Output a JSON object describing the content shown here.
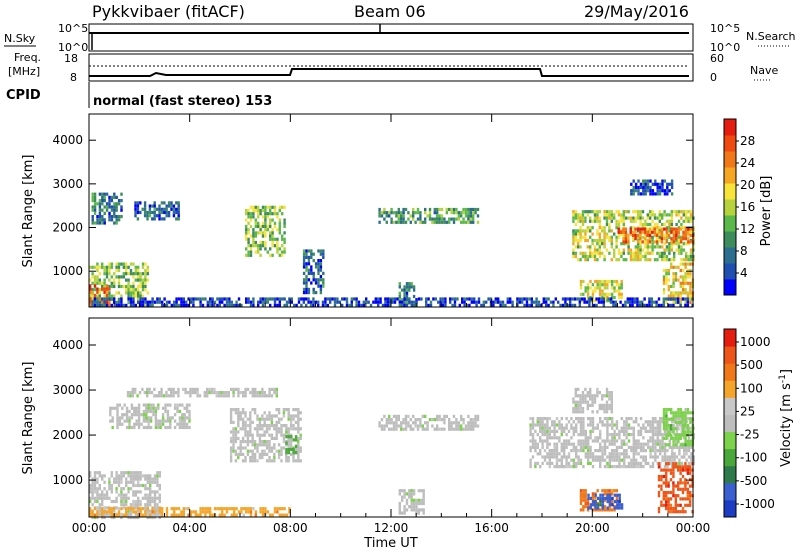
{
  "header": {
    "station": "Pykkvibaer (fitACF)",
    "beam": "Beam 06",
    "date": "29/May/2016"
  },
  "top_panels": {
    "nsky_label": "N.Sky",
    "nsearch_label": "N.Search",
    "freq_label_line1": "Freq.",
    "freq_label_line2": "[MHz]",
    "nave_label": "Nave",
    "cpid_label": "CPID",
    "cpid_text": "normal (fast stereo) 153",
    "noise_left_ticks": [
      "10^5",
      "10^0"
    ],
    "noise_right_ticks": [
      "10^5",
      "10^0"
    ],
    "freq_left_ticks": [
      "18",
      "8"
    ],
    "nave_right_ticks": [
      "60",
      "0"
    ]
  },
  "chart_data": [
    {
      "type": "heatmap",
      "name": "Power",
      "xlabel": "Time UT",
      "ylabel": "Slant Range [km]",
      "x_ticks": [
        "00:00",
        "04:00",
        "08:00",
        "12:00",
        "16:00",
        "20:00",
        "00:00"
      ],
      "x_range_hours": [
        0,
        24
      ],
      "y_ticks": [
        1000,
        2000,
        3000,
        4000
      ],
      "ylim": [
        180,
        4600
      ],
      "colorbar": {
        "label": "Power [dB]",
        "ticks": [
          "4",
          "8",
          "12",
          "16",
          "20",
          "24",
          "28"
        ],
        "colors": [
          "#0000ff",
          "#1f4fb0",
          "#2c6e8f",
          "#3c8c5c",
          "#5bb84a",
          "#b6d23c",
          "#f7e33a",
          "#f5a623",
          "#f07818",
          "#ee4a12",
          "#e51c10"
        ]
      },
      "regions": [
        {
          "t0": 0.0,
          "t1": 2.3,
          "r0": 200,
          "r1": 1200,
          "v": 0.45
        },
        {
          "t0": 0.0,
          "t1": 0.8,
          "r0": 200,
          "r1": 700,
          "v": 0.85
        },
        {
          "t0": 0.1,
          "t1": 1.3,
          "r0": 2100,
          "r1": 2800,
          "v": 0.25
        },
        {
          "t0": 1.8,
          "t1": 3.6,
          "r0": 2200,
          "r1": 2600,
          "v": 0.2
        },
        {
          "t0": 6.2,
          "t1": 7.8,
          "r0": 1400,
          "r1": 2500,
          "v": 0.45
        },
        {
          "t0": 8.5,
          "t1": 9.3,
          "r0": 500,
          "r1": 1500,
          "v": 0.2
        },
        {
          "t0": 11.5,
          "t1": 15.5,
          "r0": 2100,
          "r1": 2450,
          "v": 0.35
        },
        {
          "t0": 12.3,
          "t1": 13.0,
          "r0": 300,
          "r1": 750,
          "v": 0.25
        },
        {
          "t0": 19.2,
          "t1": 24.0,
          "r0": 1300,
          "r1": 2400,
          "v": 0.5
        },
        {
          "t0": 21.0,
          "t1": 24.0,
          "r0": 1700,
          "r1": 2000,
          "v": 0.78
        },
        {
          "t0": 19.5,
          "t1": 21.2,
          "r0": 300,
          "r1": 800,
          "v": 0.55
        },
        {
          "t0": 22.8,
          "t1": 24.0,
          "r0": 300,
          "r1": 1200,
          "v": 0.6
        },
        {
          "t0": 0.0,
          "t1": 24.0,
          "r0": 200,
          "r1": 400,
          "v": 0.12
        },
        {
          "t0": 21.5,
          "t1": 23.2,
          "r0": 2800,
          "r1": 3100,
          "v": 0.15
        }
      ]
    },
    {
      "type": "heatmap",
      "name": "Velocity",
      "xlabel": "Time UT",
      "ylabel": "Slant Range [km]",
      "x_ticks": [
        "00:00",
        "04:00",
        "08:00",
        "12:00",
        "16:00",
        "20:00",
        "00:00"
      ],
      "x_range_hours": [
        0,
        24
      ],
      "y_ticks": [
        1000,
        2000,
        3000,
        4000
      ],
      "ylim": [
        180,
        4600
      ],
      "colorbar": {
        "label": "Velocity [m s",
        "label_exp": "-1",
        "label_end": "]",
        "ticks": [
          "1000",
          "500",
          "100",
          "25",
          "-25",
          "-100",
          "-500",
          "-1000"
        ],
        "colors": [
          "#1c3cc4",
          "#3a5fd0",
          "#2f7a4a",
          "#4aa83a",
          "#7cd24a",
          "#bdbdbd",
          "#c8c8c8",
          "#f4a62a",
          "#f07818",
          "#ee5518",
          "#e51c10"
        ]
      },
      "regions": [
        {
          "t0": 0.0,
          "t1": 2.8,
          "r0": 200,
          "r1": 1200,
          "c": 5,
          "v": 0.5
        },
        {
          "t0": 0.8,
          "t1": 4.0,
          "r0": 2200,
          "r1": 2700,
          "c": 5,
          "v": 0.4
        },
        {
          "t0": 1.5,
          "t1": 7.5,
          "r0": 2900,
          "r1": 3050,
          "c": 5,
          "v": 0.35
        },
        {
          "t0": 5.6,
          "t1": 8.4,
          "r0": 1400,
          "r1": 2600,
          "c": 5,
          "v": 0.5
        },
        {
          "t0": 11.5,
          "t1": 15.5,
          "r0": 2100,
          "r1": 2450,
          "c": 5,
          "v": 0.45
        },
        {
          "t0": 12.3,
          "t1": 13.3,
          "r0": 300,
          "r1": 800,
          "c": 5,
          "v": 0.4
        },
        {
          "t0": 17.5,
          "t1": 24.0,
          "r0": 1300,
          "r1": 2400,
          "c": 5,
          "v": 0.6
        },
        {
          "t0": 19.2,
          "t1": 20.8,
          "r0": 2500,
          "r1": 3050,
          "c": 5,
          "v": 0.45
        },
        {
          "t0": 0.0,
          "t1": 8.0,
          "r0": 200,
          "r1": 400,
          "c": 7,
          "v": 0.35
        },
        {
          "t0": 19.5,
          "t1": 21.0,
          "r0": 350,
          "r1": 800,
          "c": 8,
          "v": 0.55
        },
        {
          "t0": 19.8,
          "t1": 21.2,
          "r0": 400,
          "r1": 700,
          "c": 1,
          "v": 0.3
        },
        {
          "t0": 22.6,
          "t1": 24.0,
          "r0": 300,
          "r1": 1400,
          "c": 9,
          "v": 0.55
        },
        {
          "t0": 22.8,
          "t1": 24.0,
          "r0": 1800,
          "r1": 2600,
          "c": 4,
          "v": 0.35
        },
        {
          "t0": 7.8,
          "t1": 8.2,
          "r0": 1600,
          "r1": 2000,
          "c": 3,
          "v": 0.5
        }
      ]
    }
  ]
}
